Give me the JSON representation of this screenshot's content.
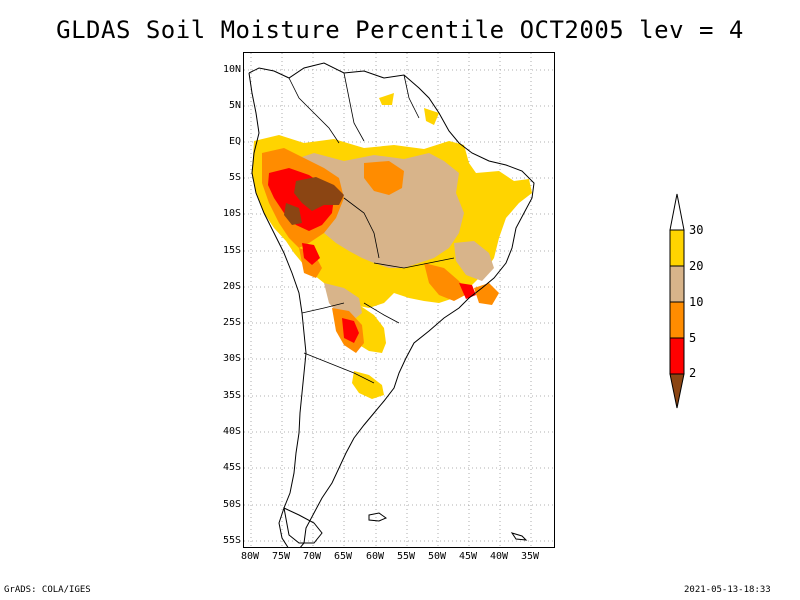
{
  "title": "GLDAS Soil Moisture Percentile OCT2005 lev = 4",
  "map": {
    "lat_labels": [
      "10N",
      "5N",
      "EQ",
      "5S",
      "10S",
      "15S",
      "20S",
      "25S",
      "30S",
      "35S",
      "40S",
      "45S",
      "50S",
      "55S"
    ],
    "lon_labels": [
      "80W",
      "75W",
      "70W",
      "65W",
      "60W",
      "55W",
      "50W",
      "45W",
      "40W",
      "35W"
    ],
    "region": "South America",
    "grid": true
  },
  "legend": {
    "labels": [
      "30",
      "20",
      "10",
      "5",
      "2"
    ],
    "colors": {
      "above_30": "#ffffff",
      "20_30": "#ffd400",
      "10_20": "#d8b48a",
      "5_10": "#ff8c00",
      "2_5": "#ff0000",
      "below_2": "#8b4513"
    }
  },
  "footer": {
    "left": "GrADS: COLA/IGES",
    "right": "2021-05-13-18:33"
  }
}
